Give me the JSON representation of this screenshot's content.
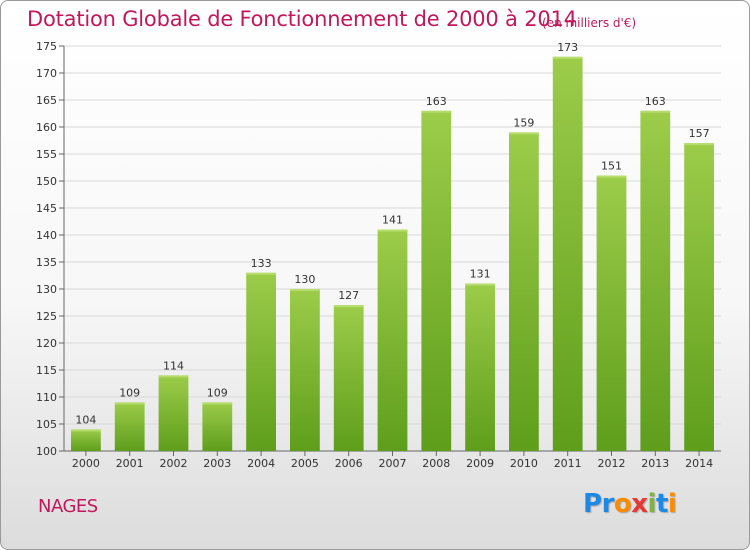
{
  "header": {
    "title": "Dotation Globale de Fonctionnement de 2000 à 2014",
    "subtitle": "(en milliers d'€)"
  },
  "footer": {
    "commune": "NAGES",
    "logo_letters": [
      "P",
      "r",
      "o",
      "x",
      "i",
      "t",
      "i"
    ]
  },
  "colors": {
    "bar_light": "#9ccc4a",
    "bar_dark": "#5e9e1b",
    "text_accent": "#c2185b",
    "logo": [
      "#1e88e5",
      "#1e88e5",
      "#fb8c00",
      "#e53935",
      "#7cb342",
      "#1e88e5",
      "#fb8c00"
    ]
  },
  "chart_data": {
    "type": "bar",
    "title": "Dotation Globale de Fonctionnement de 2000 à 2014",
    "categories": [
      "2000",
      "2001",
      "2002",
      "2003",
      "2004",
      "2005",
      "2006",
      "2007",
      "2008",
      "2009",
      "2010",
      "2011",
      "2012",
      "2013",
      "2014"
    ],
    "values": [
      104,
      109,
      114,
      109,
      133,
      130,
      127,
      141,
      163,
      131,
      159,
      173,
      151,
      163,
      157
    ],
    "ylim": [
      100,
      175
    ],
    "yticks": [
      100,
      105,
      110,
      115,
      120,
      125,
      130,
      135,
      140,
      145,
      150,
      155,
      160,
      165,
      170,
      175
    ],
    "grid": true,
    "legend": "none"
  }
}
